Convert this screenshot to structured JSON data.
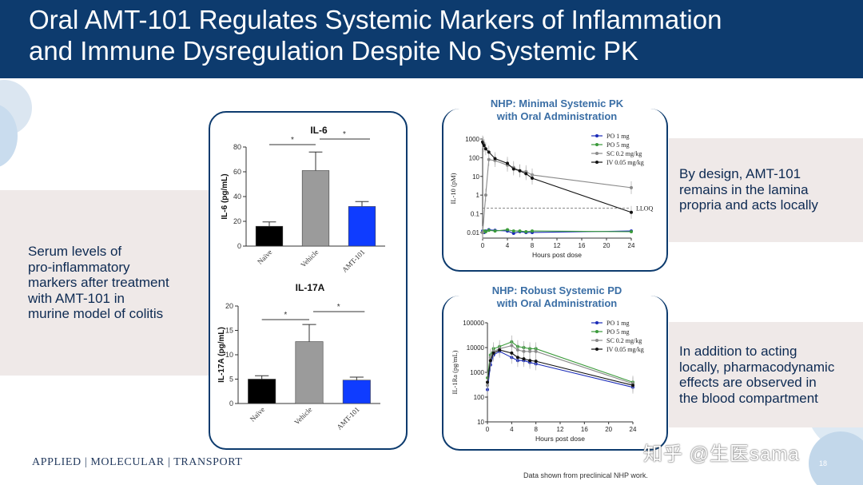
{
  "title": {
    "line1": "Oral AMT-101 Regulates Systemic Markers of Inflammation",
    "line2": "and Immune Dysregulation Despite No Systemic PK"
  },
  "left_text": "Serum levels of\npro-inflammatory\nmarkers after treatment\nwith AMT-101 in\nmurine model of colitis",
  "right_text_1": "By design, AMT-101\nremains in the lamina\npropria and acts locally",
  "right_text_2": "In addition to acting\nlocally, pharmacodynamic\neffects are observed in\nthe blood compartment",
  "logo": "APPLIED | MOLECULAR | TRANSPORT",
  "footnote": "Data shown from preclinical NHP work.",
  "page_number": "18",
  "watermark": "知乎 @生医sama",
  "colors": {
    "title_bg": "#0d3b6e",
    "panel_bg": "#efe9e8",
    "frame": "#0d3b6e",
    "naive": "#000000",
    "vehicle": "#9b9b9b",
    "amt101": "#0f3cff",
    "po1": "#1a2bb8",
    "po5": "#3a9a3a",
    "sc": "#8a8a8a",
    "iv": "#111111"
  },
  "chart_data": [
    {
      "type": "bar",
      "title": "IL-6",
      "ylabel": "IL-6 (pg/mL)",
      "categories": [
        "Naïve",
        "Vehicle",
        "AMT-101"
      ],
      "values": [
        16,
        61,
        32
      ],
      "errors": [
        3.5,
        15,
        4
      ],
      "ylim": [
        0,
        80
      ],
      "yticks": [
        "0",
        "20",
        "40",
        "60",
        "80"
      ],
      "significance": [
        "*",
        "*"
      ]
    },
    {
      "type": "bar",
      "title": "IL-17A",
      "ylabel": "IL-17A (pg/mL)",
      "categories": [
        "Naïve",
        "Vehicle",
        "AMT-101"
      ],
      "values": [
        5,
        12.7,
        4.8
      ],
      "errors": [
        0.7,
        3.5,
        0.6
      ],
      "ylim": [
        0,
        20
      ],
      "yticks": [
        "0",
        "5",
        "10",
        "15",
        "20"
      ],
      "significance": [
        "*",
        "*"
      ]
    },
    {
      "type": "line",
      "title": "NHP: Minimal Systemic PK\nwith Oral Administration",
      "title_lines": [
        "NHP: Minimal Systemic PK",
        "with Oral Administration"
      ],
      "xlabel": "Hours post dose",
      "ylabel": "IL-10 (pM)",
      "yscale": "log",
      "ylim": [
        0.005,
        1000
      ],
      "yticks": [
        "0.01",
        "0.1",
        "1",
        "10",
        "100",
        "1000"
      ],
      "xlim": [
        0,
        24
      ],
      "xticks": [
        "0",
        "4",
        "8",
        "12",
        "16",
        "20",
        "24"
      ],
      "annotation": "LLOQ",
      "lloq": 0.2,
      "series": [
        {
          "name": "PO 1 mg",
          "x": [
            0,
            0.25,
            0.5,
            1,
            2,
            4,
            5,
            6,
            7,
            8,
            24
          ],
          "y": [
            0.012,
            0.01,
            0.012,
            0.014,
            0.013,
            0.012,
            0.009,
            0.011,
            0.01,
            0.01,
            0.012
          ]
        },
        {
          "name": "PO 5 mg",
          "x": [
            0,
            0.25,
            0.5,
            1,
            2,
            4,
            5,
            6,
            7,
            8,
            24
          ],
          "y": [
            0.01,
            0.012,
            0.011,
            0.013,
            0.012,
            0.014,
            0.012,
            0.012,
            0.011,
            0.012,
            0.011
          ]
        },
        {
          "name": "SC 0.2 mg/kg",
          "x": [
            0,
            0.5,
            1,
            2,
            4,
            5,
            6,
            7,
            8,
            24
          ],
          "y": [
            0.01,
            1,
            80,
            70,
            40,
            30,
            20,
            18,
            12,
            2.5
          ]
        },
        {
          "name": "IV 0.05 mg/kg",
          "x": [
            0,
            0.1,
            0.25,
            0.5,
            1,
            2,
            4,
            5,
            6,
            7,
            8,
            24
          ],
          "y": [
            700,
            600,
            450,
            300,
            200,
            90,
            50,
            25,
            20,
            14,
            8,
            0.12
          ]
        }
      ]
    },
    {
      "type": "line",
      "title": "NHP: Robust Systemic PD\nwith Oral Administration",
      "title_lines": [
        "NHP: Robust Systemic PD",
        "with Oral Administration"
      ],
      "xlabel": "Hours post dose",
      "ylabel": "IL-1Ra (pg/mL)",
      "yscale": "log",
      "ylim": [
        10,
        100000
      ],
      "yticks": [
        "10",
        "100",
        "1000",
        "10000",
        "100000"
      ],
      "xlim": [
        0,
        24
      ],
      "xticks": [
        "0",
        "4",
        "8",
        "12",
        "16",
        "20",
        "24"
      ],
      "series": [
        {
          "name": "PO 1 mg",
          "x": [
            0,
            0.5,
            1,
            2,
            4,
            5,
            6,
            7,
            8,
            24
          ],
          "y": [
            200,
            2000,
            5000,
            7000,
            4000,
            3000,
            3000,
            2500,
            2200,
            250
          ]
        },
        {
          "name": "PO 5 mg",
          "x": [
            0,
            0.5,
            1,
            2,
            4,
            5,
            6,
            7,
            8,
            24
          ],
          "y": [
            600,
            5000,
            9000,
            11000,
            17000,
            11000,
            10000,
            9000,
            9000,
            400
          ]
        },
        {
          "name": "SC 0.2 mg/kg",
          "x": [
            0,
            0.5,
            1,
            2,
            4,
            5,
            6,
            7,
            8,
            24
          ],
          "y": [
            300,
            4000,
            7000,
            9000,
            12000,
            8000,
            7000,
            7000,
            7000,
            350
          ]
        },
        {
          "name": "IV 0.05 mg/kg",
          "x": [
            0,
            0.5,
            1,
            2,
            4,
            5,
            6,
            7,
            8,
            24
          ],
          "y": [
            400,
            3000,
            6000,
            8000,
            6000,
            4000,
            3500,
            3000,
            2800,
            300
          ]
        }
      ]
    }
  ]
}
